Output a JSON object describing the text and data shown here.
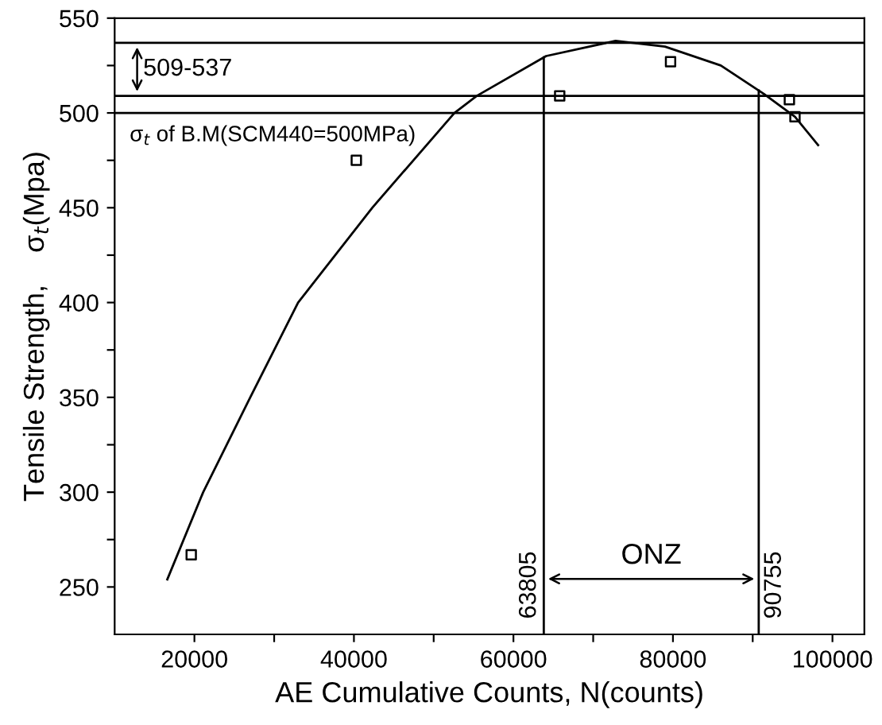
{
  "chart_data": {
    "type": "scatter",
    "xlabel": "AE Cumulative Counts, N(counts)",
    "ylabel": "Tensile Strength,    σ$_{t}$(Mpa)",
    "xlim": [
      10000,
      104000
    ],
    "ylim": [
      225,
      550
    ],
    "xticks": [
      20000,
      {
        "value": 30000,
        "label": null
      },
      40000,
      {
        "value": 50000,
        "label": null
      },
      60000,
      {
        "value": 70000,
        "label": null
      },
      80000,
      {
        "value": 90000,
        "label": null
      },
      100000
    ],
    "yticks": [
      {
        "value": 250,
        "label": "250"
      },
      {
        "value": 275,
        "label": null
      },
      300,
      {
        "value": 325,
        "label": null
      },
      350,
      {
        "value": 375,
        "label": null
      },
      400,
      {
        "value": 425,
        "label": null
      },
      450,
      {
        "value": 475,
        "label": null
      },
      500,
      {
        "value": 525,
        "label": null
      },
      550
    ],
    "marker": "square",
    "grid": false,
    "series": [
      {
        "color": "#000000",
        "x": [
          19600,
          40300,
          65800,
          79700,
          94600,
          95300
        ],
        "values": [
          267,
          475,
          509,
          527,
          507,
          498
        ]
      },
      {
        "type": "line",
        "color": "#000000",
        "marker": "none",
        "x": [
          16600,
          21100,
          27000,
          33000,
          42300,
          52600,
          55400,
          64100,
          72800,
          79000,
          86000,
          91400,
          95300,
          98200
        ],
        "values": [
          254,
          300,
          350,
          400,
          450,
          500,
          509,
          530,
          538,
          535,
          525,
          510,
          498,
          483
        ]
      }
    ],
    "ref_lines": [
      {
        "axis": "y",
        "value": 500,
        "label": "σ$_{t}$ of B.M(SCM440=500MPa)"
      },
      {
        "axis": "y",
        "value": 509
      },
      {
        "axis": "y",
        "value": 537
      },
      {
        "axis": "x",
        "value": 63805,
        "label": "63805"
      },
      {
        "axis": "x",
        "value": 90755,
        "label": "90755"
      }
    ],
    "annotations": [
      "509-537",
      "ONZ"
    ]
  }
}
